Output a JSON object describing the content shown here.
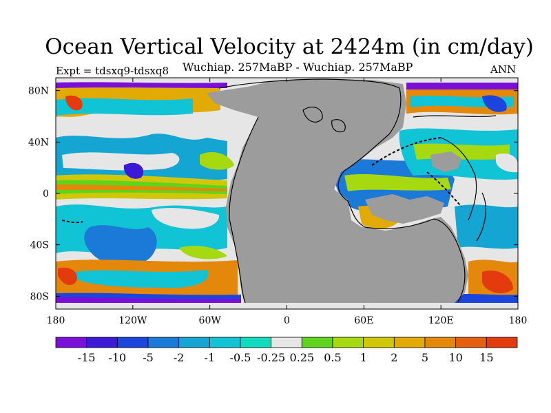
{
  "title": "Ocean Vertical Velocity at 2424m (in cm/day)",
  "subtitle": "Wuchiap. 257MaBP - Wuchiap. 257MaBP",
  "experiment_label": "Expt = tdsxq9-tdsxq8",
  "period_label": "ANN",
  "map": {
    "projection": "cylindrical equidistant",
    "lon_range": [
      -180,
      180
    ],
    "lat_range": [
      -90,
      90
    ],
    "land_color": "#9c9c9c",
    "y_ticks": [
      {
        "value": 80,
        "label": "80N"
      },
      {
        "value": 40,
        "label": "40N"
      },
      {
        "value": 0,
        "label": "0"
      },
      {
        "value": -40,
        "label": "40S"
      },
      {
        "value": -80,
        "label": "80S"
      }
    ],
    "x_ticks": [
      {
        "value": -180,
        "label": "180"
      },
      {
        "value": -120,
        "label": "120W"
      },
      {
        "value": -60,
        "label": "60W"
      },
      {
        "value": 0,
        "label": "0"
      },
      {
        "value": 60,
        "label": "60E"
      },
      {
        "value": 120,
        "label": "120E"
      },
      {
        "value": 180,
        "label": "180"
      }
    ]
  },
  "colorbar": {
    "colors": [
      "#7a10d8",
      "#3c19d6",
      "#1b45dc",
      "#1b7ad8",
      "#15a5d3",
      "#10c3d5",
      "#10dbbf",
      "#e6e6e6",
      "#5fd41d",
      "#a6d910",
      "#cfc707",
      "#e1aa05",
      "#e4880b",
      "#e55f10",
      "#e33a0e"
    ],
    "labels": [
      "-15",
      "-10",
      "-5",
      "-2",
      "-1",
      "-0.5",
      "-0.25",
      "0.25",
      "0.5",
      "1",
      "2",
      "5",
      "10",
      "15"
    ]
  }
}
